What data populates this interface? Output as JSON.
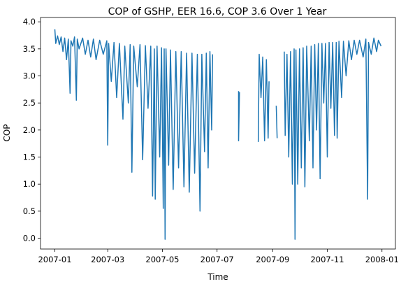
{
  "chart_data": {
    "type": "line",
    "title": "COP of GSHP, EER 16.6, COP 3.6 Over 1 Year",
    "xlabel": "Time",
    "ylabel": "COP",
    "xlim": [
      "2006-12-16",
      "2008-01-16"
    ],
    "ylim": [
      -0.2,
      4.08
    ],
    "x_ticks": [
      "2007-01",
      "2007-03",
      "2007-05",
      "2007-07",
      "2007-09",
      "2007-11",
      "2008-01"
    ],
    "y_ticks": [
      "0.0",
      "0.5",
      "1.0",
      "1.5",
      "2.0",
      "2.5",
      "3.0",
      "3.5",
      "4.0"
    ],
    "grid": false,
    "legend": "none",
    "series": [
      {
        "color": "#1f77b4",
        "points": [
          [
            "2007-01-01",
            3.86
          ],
          [
            "2007-01-02",
            3.6
          ],
          [
            "2007-01-04",
            3.74
          ],
          [
            "2007-01-06",
            3.58
          ],
          [
            "2007-01-08",
            3.72
          ],
          [
            "2007-01-10",
            3.45
          ],
          [
            "2007-01-12",
            3.7
          ],
          [
            "2007-01-14",
            3.3
          ],
          [
            "2007-01-16",
            3.68
          ],
          [
            "2007-01-18",
            2.68
          ],
          [
            "2007-01-19",
            3.65
          ],
          [
            "2007-01-21",
            3.55
          ],
          [
            "2007-01-23",
            3.72
          ],
          [
            "2007-01-25",
            2.55
          ],
          [
            "2007-01-26",
            3.68
          ],
          [
            "2007-01-28",
            3.5
          ],
          [
            "2007-02-01",
            3.7
          ],
          [
            "2007-02-04",
            3.4
          ],
          [
            "2007-02-07",
            3.66
          ],
          [
            "2007-02-10",
            3.35
          ],
          [
            "2007-02-13",
            3.68
          ],
          [
            "2007-02-16",
            3.3
          ],
          [
            "2007-02-20",
            3.66
          ],
          [
            "2007-02-24",
            3.4
          ],
          [
            "2007-02-28",
            3.65
          ],
          [
            "2007-03-01",
            1.72
          ],
          [
            "2007-03-02",
            3.6
          ],
          [
            "2007-03-05",
            2.9
          ],
          [
            "2007-03-08",
            3.62
          ],
          [
            "2007-03-11",
            2.6
          ],
          [
            "2007-03-14",
            3.6
          ],
          [
            "2007-03-18",
            2.2
          ],
          [
            "2007-03-20",
            3.55
          ],
          [
            "2007-03-24",
            2.5
          ],
          [
            "2007-03-26",
            3.58
          ],
          [
            "2007-03-28",
            1.22
          ],
          [
            "2007-03-30",
            3.55
          ],
          [
            "2007-04-03",
            2.8
          ],
          [
            "2007-04-06",
            3.58
          ],
          [
            "2007-04-09",
            1.45
          ],
          [
            "2007-04-12",
            3.56
          ],
          [
            "2007-04-15",
            2.4
          ],
          [
            "2007-04-18",
            3.55
          ],
          [
            "2007-04-20",
            0.78
          ],
          [
            "2007-04-22",
            3.5
          ],
          [
            "2007-04-23",
            0.72
          ],
          [
            "2007-04-25",
            3.55
          ],
          [
            "2007-04-28",
            1.5
          ],
          [
            "2007-04-30",
            3.52
          ],
          [
            "2007-05-02",
            0.55
          ],
          [
            "2007-05-03",
            3.5
          ],
          [
            "2007-05-04",
            -0.02
          ],
          [
            "2007-05-05",
            3.5
          ],
          [
            "2007-05-08",
            1.35
          ],
          [
            "2007-05-10",
            3.48
          ],
          [
            "2007-05-13",
            0.9
          ],
          [
            "2007-05-16",
            3.45
          ],
          [
            "2007-05-19",
            1.3
          ],
          [
            "2007-05-22",
            3.45
          ],
          [
            "2007-05-25",
            0.95
          ],
          [
            "2007-05-28",
            3.42
          ],
          [
            "2007-05-31",
            0.85
          ],
          [
            "2007-06-03",
            3.42
          ],
          [
            "2007-06-06",
            1.2
          ],
          [
            "2007-06-09",
            3.4
          ],
          [
            "2007-06-12",
            0.5
          ],
          [
            "2007-06-14",
            3.4
          ],
          [
            "2007-06-17",
            1.6
          ],
          [
            "2007-06-19",
            3.42
          ],
          [
            "2007-06-21",
            1.3
          ],
          [
            "2007-06-23",
            3.45
          ],
          [
            "2007-06-25",
            2.0
          ],
          [
            "2007-06-26",
            3.4
          ],
          [
            "2007-06-27",
            null
          ],
          [
            "2007-07-25",
            2.72
          ],
          [
            "2007-07-25",
            1.8
          ],
          [
            "2007-07-26",
            2.7
          ],
          [
            "2007-07-27",
            null
          ],
          [
            "2007-08-16",
            1.78
          ],
          [
            "2007-08-17",
            3.4
          ],
          [
            "2007-08-19",
            2.6
          ],
          [
            "2007-08-21",
            3.35
          ],
          [
            "2007-08-23",
            1.8
          ],
          [
            "2007-08-25",
            3.3
          ],
          [
            "2007-08-27",
            1.85
          ],
          [
            "2007-08-28",
            2.9
          ],
          [
            "2007-08-29",
            null
          ],
          [
            "2007-09-05",
            2.45
          ],
          [
            "2007-09-06",
            1.85
          ],
          [
            "2007-09-07",
            null
          ],
          [
            "2007-09-14",
            3.45
          ],
          [
            "2007-09-15",
            1.9
          ],
          [
            "2007-09-17",
            3.4
          ],
          [
            "2007-09-19",
            1.5
          ],
          [
            "2007-09-21",
            3.45
          ],
          [
            "2007-09-23",
            1.0
          ],
          [
            "2007-09-25",
            3.5
          ],
          [
            "2007-09-26",
            -0.02
          ],
          [
            "2007-09-27",
            3.48
          ],
          [
            "2007-09-29",
            1.0
          ],
          [
            "2007-10-01",
            3.5
          ],
          [
            "2007-10-03",
            1.3
          ],
          [
            "2007-10-05",
            3.52
          ],
          [
            "2007-10-07",
            0.95
          ],
          [
            "2007-10-09",
            3.55
          ],
          [
            "2007-10-12",
            1.8
          ],
          [
            "2007-10-14",
            3.55
          ],
          [
            "2007-10-16",
            1.3
          ],
          [
            "2007-10-18",
            3.58
          ],
          [
            "2007-10-20",
            2.0
          ],
          [
            "2007-10-22",
            3.6
          ],
          [
            "2007-10-24",
            1.1
          ],
          [
            "2007-10-26",
            3.6
          ],
          [
            "2007-10-28",
            2.5
          ],
          [
            "2007-10-30",
            3.6
          ],
          [
            "2007-11-01",
            1.5
          ],
          [
            "2007-11-03",
            3.62
          ],
          [
            "2007-11-05",
            2.4
          ],
          [
            "2007-11-07",
            3.62
          ],
          [
            "2007-11-09",
            1.9
          ],
          [
            "2007-11-11",
            3.62
          ],
          [
            "2007-11-12",
            1.85
          ],
          [
            "2007-11-14",
            3.64
          ],
          [
            "2007-11-17",
            2.6
          ],
          [
            "2007-11-19",
            3.64
          ],
          [
            "2007-11-22",
            3.0
          ],
          [
            "2007-11-25",
            3.65
          ],
          [
            "2007-11-28",
            3.3
          ],
          [
            "2007-12-01",
            3.66
          ],
          [
            "2007-12-04",
            3.4
          ],
          [
            "2007-12-07",
            3.66
          ],
          [
            "2007-12-11",
            3.35
          ],
          [
            "2007-12-14",
            3.68
          ],
          [
            "2007-12-16",
            0.72
          ],
          [
            "2007-12-17",
            3.62
          ],
          [
            "2007-12-20",
            3.4
          ],
          [
            "2007-12-23",
            3.7
          ],
          [
            "2007-12-26",
            3.45
          ],
          [
            "2007-12-28",
            3.66
          ],
          [
            "2007-12-31",
            3.55
          ]
        ]
      }
    ]
  }
}
